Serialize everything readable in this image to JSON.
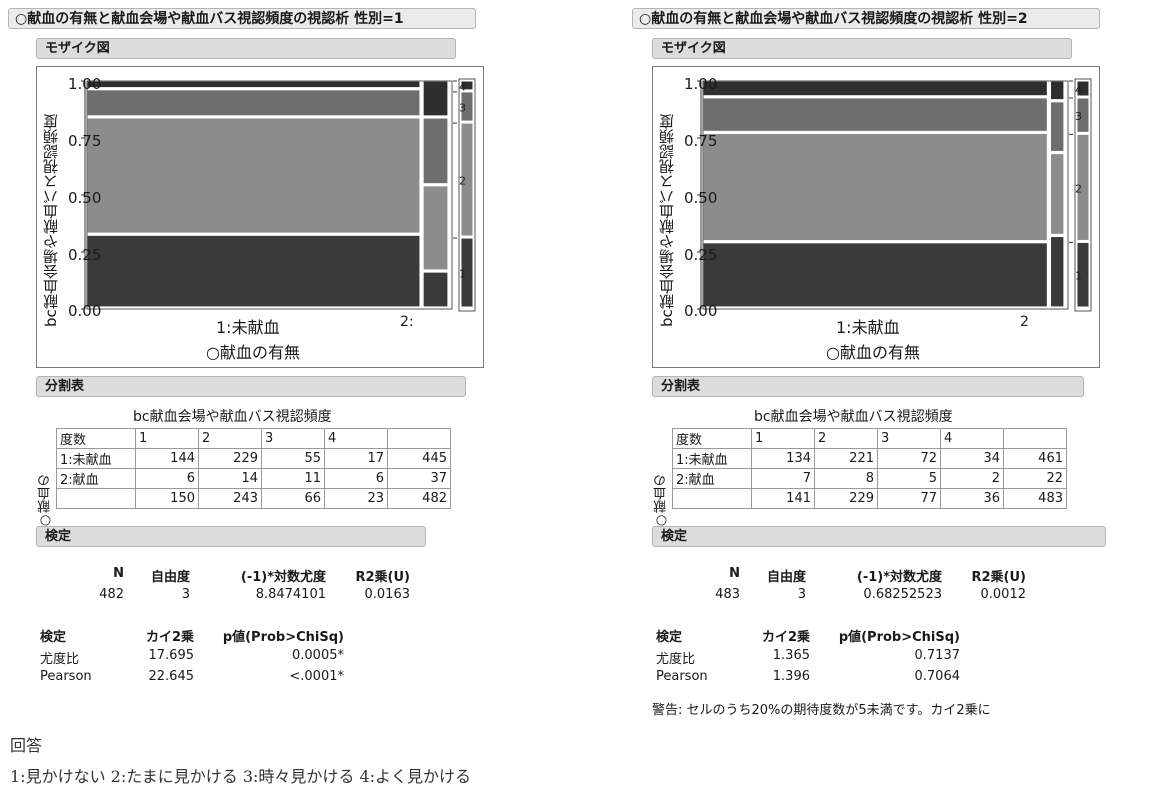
{
  "panels": [
    {
      "title": "○献血の有無と献血会場や献血バス視認頻度の視認析 性別=1",
      "mosaic_header": "モザイク図",
      "ylabel": "bc献血会場や献血バス視認頻度",
      "xlabel": "○献血の有無",
      "x_tick_1": "1:未献血",
      "x_tick_2": "2:",
      "y_ticks": [
        "1.00",
        "0.75",
        "0.50",
        "0.25",
        "0.00"
      ],
      "legend_labels": [
        "4",
        "3",
        "2",
        "1"
      ],
      "table_header": "分割表",
      "table_title": "bc献血会場や献血バス視認頻度",
      "table_side_label": "○献血の",
      "table_head": [
        "度数",
        "1",
        "2",
        "3",
        "4",
        ""
      ],
      "table_rows": [
        [
          "1:未献血",
          "144",
          "229",
          "55",
          "17",
          "445"
        ],
        [
          "2:献血",
          "6",
          "14",
          "11",
          "6",
          "37"
        ],
        [
          "",
          "150",
          "243",
          "66",
          "23",
          "482"
        ]
      ],
      "test_header": "検定",
      "stats_head": [
        "N",
        "自由度",
        "(-1)*対数尤度",
        "R2乗(U)"
      ],
      "stats_vals": [
        "482",
        "3",
        "8.8474101",
        "0.0163"
      ],
      "tests_head": [
        "検定",
        "カイ2乗",
        "p値(Prob>ChiSq)"
      ],
      "tests_rows": [
        [
          "尤度比",
          "17.695",
          "0.0005*"
        ],
        [
          "Pearson",
          "22.645",
          "<.0001*"
        ]
      ],
      "warning": ""
    },
    {
      "title": "○献血の有無と献血会場や献血バス視認頻度の視認析 性別=2",
      "mosaic_header": "モザイク図",
      "ylabel": "bc献血会場や献血バス視認頻度",
      "xlabel": "○献血の有無",
      "x_tick_1": "1:未献血",
      "x_tick_2": "2",
      "y_ticks": [
        "1.00",
        "0.75",
        "0.50",
        "0.25",
        "0.00"
      ],
      "legend_labels": [
        "4",
        "3",
        "2",
        "1"
      ],
      "table_header": "分割表",
      "table_title": "bc献血会場や献血バス視認頻度",
      "table_side_label": "○献血の",
      "table_head": [
        "度数",
        "1",
        "2",
        "3",
        "4",
        ""
      ],
      "table_rows": [
        [
          "1:未献血",
          "134",
          "221",
          "72",
          "34",
          "461"
        ],
        [
          "2:献血",
          "7",
          "8",
          "5",
          "2",
          "22"
        ],
        [
          "",
          "141",
          "229",
          "77",
          "36",
          "483"
        ]
      ],
      "test_header": "検定",
      "stats_head": [
        "N",
        "自由度",
        "(-1)*対数尤度",
        "R2乗(U)"
      ],
      "stats_vals": [
        "483",
        "3",
        "0.68252523",
        "0.0012"
      ],
      "tests_head": [
        "検定",
        "カイ2乗",
        "p値(Prob>ChiSq)"
      ],
      "tests_rows": [
        [
          "尤度比",
          "1.365",
          "0.7137"
        ],
        [
          "Pearson",
          "1.396",
          "0.7064"
        ]
      ],
      "warning": "警告: セルのうち20%の期待度数が5未満です。カイ2乗に"
    }
  ],
  "footer": {
    "line1": "回答",
    "line2": "1:見かけない  2:たまに見かける  3:時々見かける  4:よく見かける"
  },
  "colors": {
    "level_1": "#3a3a3a",
    "level_2": "#8c8c8c",
    "level_3": "#6e6e6e",
    "level_4": "#2e2e2e"
  },
  "chart_data": [
    {
      "type": "mosaic",
      "ylim": [
        0,
        1
      ],
      "categories": [
        "1:未献血",
        "2:献血"
      ],
      "levels": [
        "1",
        "2",
        "3",
        "4"
      ],
      "counts": [
        [
          144,
          229,
          55,
          17
        ],
        [
          6,
          14,
          11,
          6
        ]
      ]
    },
    {
      "type": "mosaic",
      "ylim": [
        0,
        1
      ],
      "categories": [
        "1:未献血",
        "2:献血"
      ],
      "levels": [
        "1",
        "2",
        "3",
        "4"
      ],
      "counts": [
        [
          134,
          221,
          72,
          34
        ],
        [
          7,
          8,
          5,
          2
        ]
      ]
    }
  ]
}
